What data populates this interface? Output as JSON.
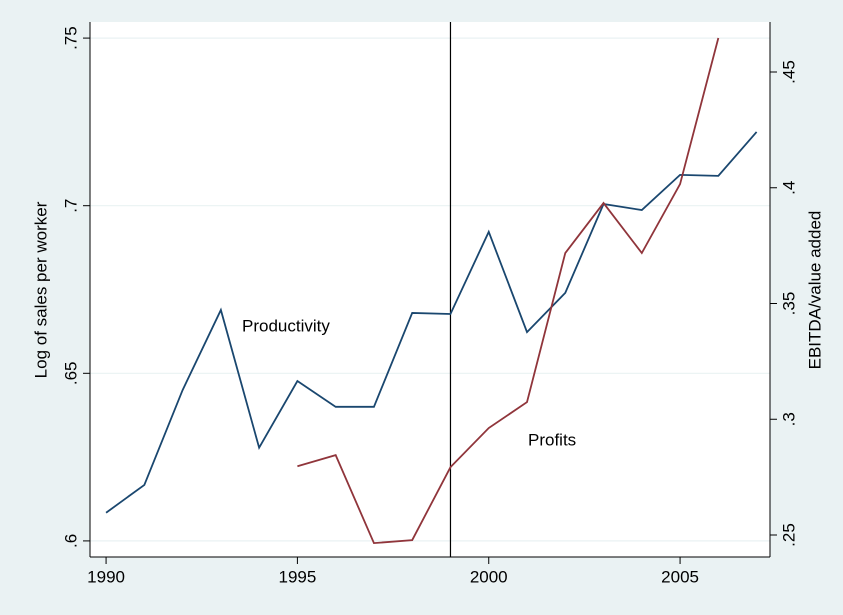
{
  "chart_data": {
    "type": "line",
    "annotations": [
      "Productivity",
      "Profits"
    ],
    "y_label": "Log of sales per worker",
    "y2_label": "EBITDA/value added",
    "x": [
      1990,
      1991,
      1992,
      1993,
      1994,
      1995,
      1996,
      1997,
      1998,
      1999,
      2000,
      2001,
      2002,
      2003,
      2004,
      2005,
      2006,
      2007
    ],
    "series": [
      {
        "color": "#1a476f",
        "values": [
          0.6084,
          0.6167,
          0.645,
          0.6689,
          0.6278,
          0.6477,
          0.64,
          0.64,
          0.668,
          0.6677,
          0.6922,
          0.6623,
          0.674,
          0.7005,
          0.6987,
          0.7092,
          0.7089,
          0.722
        ]
      },
      {
        "color": "#90353b",
        "axis": "y2",
        "values": [
          null,
          null,
          null,
          null,
          null,
          0.2797,
          0.2845,
          0.2465,
          0.2478,
          0.2793,
          0.2962,
          0.3074,
          0.3718,
          0.3934,
          0.3718,
          0.4016,
          0.4647,
          null
        ]
      }
    ],
    "vline": 1999,
    "xlim": [
      1989.58,
      2007.35
    ],
    "xticks": [
      1990,
      1995,
      2000,
      2005
    ],
    "ylim": [
      0.5952,
      0.7548
    ],
    "yticks": [
      {
        "value": 0.6,
        "label": ".6"
      },
      {
        "value": 0.65,
        "label": ".65"
      },
      {
        "value": 0.7,
        "label": ".7"
      },
      {
        "value": 0.75,
        "label": ".75"
      }
    ],
    "y2lim": [
      0.2405,
      0.4716
    ],
    "y2ticks": [
      {
        "value": 0.25,
        "label": ".25"
      },
      {
        "value": 0.3,
        "label": ".3"
      },
      {
        "value": 0.35,
        "label": ".35"
      },
      {
        "value": 0.4,
        "label": ".4"
      },
      {
        "value": 0.45,
        "label": ".45"
      }
    ],
    "grid": true
  }
}
